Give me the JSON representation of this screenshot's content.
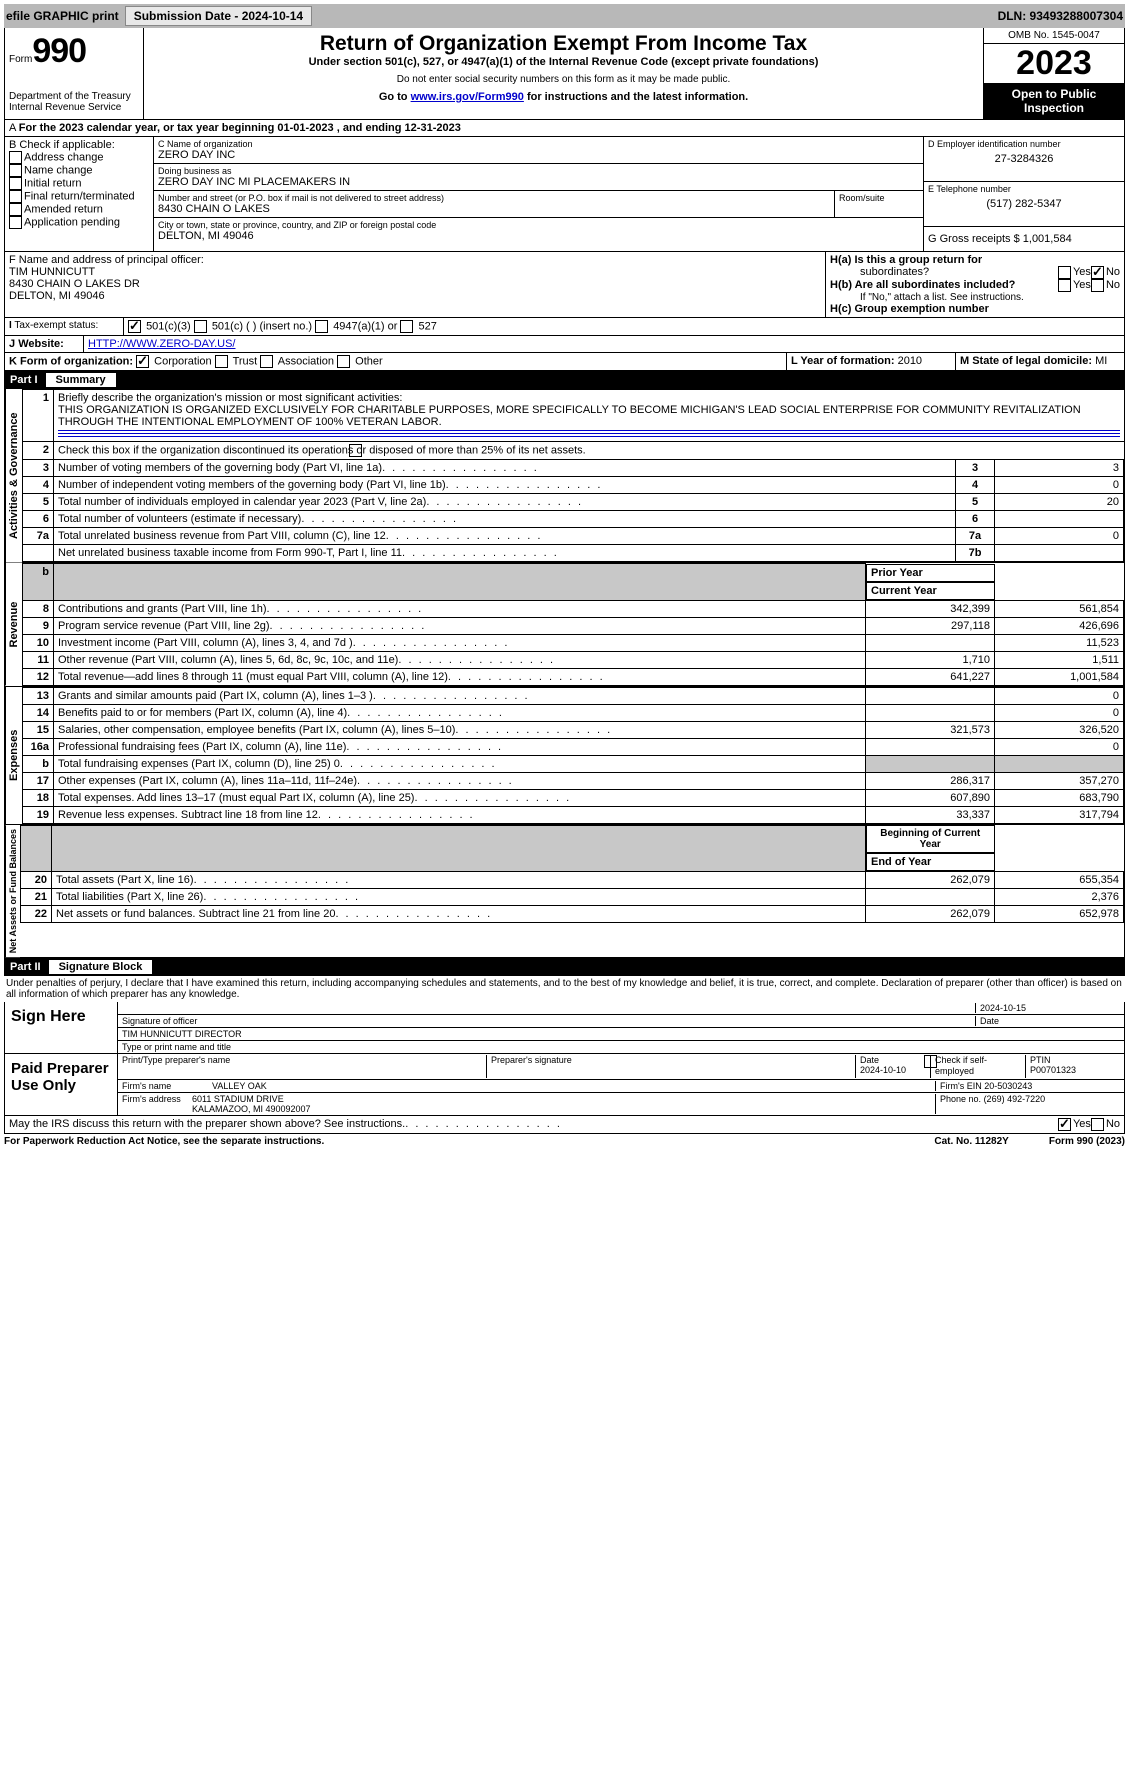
{
  "topbar": {
    "efile": "efile GRAPHIC print",
    "submission": "Submission Date - 2024-10-14",
    "dln": "DLN: 93493288007304"
  },
  "header": {
    "form_label": "Form",
    "form_no": "990",
    "omb": "OMB No. 1545-0047",
    "year": "2023",
    "title": "Return of Organization Exempt From Income Tax",
    "sub": "Under section 501(c), 527, or 4947(a)(1) of the Internal Revenue Code (except private foundations)",
    "sub2": "Do not enter social security numbers on this form as it may be made public.",
    "sub3": "Go to ",
    "sub3_link": "www.irs.gov/Form990",
    "sub3_suffix": " for instructions and the latest information.",
    "public": "Open to Public Inspection",
    "dept": "Department of the Treasury Internal Revenue Service"
  },
  "periodA": "For the 2023 calendar year, or tax year beginning 01-01-2023    , and ending 12-31-2023",
  "checkB": {
    "title": "B Check if applicable:",
    "items": [
      "Address change",
      "Name change",
      "Initial return",
      "Final return/terminated",
      "Amended return",
      "Application pending"
    ]
  },
  "org": {
    "name_lbl": "C Name of organization",
    "name": "ZERO DAY INC",
    "dba_lbl": "Doing business as",
    "dba": "ZERO DAY INC MI PLACEMAKERS IN",
    "street_lbl": "Number and street (or P.O. box if mail is not delivered to street address)",
    "street": "8430 CHAIN O LAKES",
    "room_lbl": "Room/suite",
    "city_lbl": "City or town, state or province, country, and ZIP or foreign postal code",
    "city": "DELTON, MI  49046"
  },
  "ein": {
    "lbl": "D Employer identification number",
    "val": "27-3284326"
  },
  "tel": {
    "lbl": "E Telephone number",
    "val": "(517) 282-5347"
  },
  "gross": {
    "lbl": "G Gross receipts $",
    "val": "1,001,584"
  },
  "officer": {
    "lbl": "F  Name and address of principal officer:",
    "name": "TIM HUNNICUTT",
    "addr1": "8430 CHAIN O LAKES DR",
    "addr2": "DELTON, MI  49046"
  },
  "groupH": {
    "a": "H(a)  Is this a group return for",
    "a2": "subordinates?",
    "b": "H(b)  Are all subordinates included?",
    "b2": "If \"No,\" attach a list. See instructions.",
    "c": "H(c)  Group exemption number",
    "yes": "Yes",
    "no": "No"
  },
  "tax": {
    "lbl": "Tax-exempt status:",
    "c3": "501(c)(3)",
    "c": "501(c) (  ) (insert no.)",
    "a1": "4947(a)(1) or",
    "s527": "527"
  },
  "website": {
    "lbl": "Website:",
    "val": "HTTP://WWW.ZERO-DAY.US/"
  },
  "formorg": {
    "lbl": "K Form of organization:",
    "corp": "Corporation",
    "trust": "Trust",
    "assoc": "Association",
    "other": "Other"
  },
  "year_formed": {
    "lbl": "L Year of formation:",
    "val": "2010"
  },
  "domicile": {
    "lbl": "M State of legal domicile:",
    "val": "MI"
  },
  "part1": {
    "label": "Part I",
    "title": "Summary"
  },
  "mission_lbl": "Briefly describe the organization's mission or most significant activities:",
  "mission": "THIS ORGANIZATION IS ORGANIZED EXCLUSIVELY FOR CHARITABLE PURPOSES, MORE SPECIFICALLY TO BECOME MICHIGAN'S LEAD SOCIAL ENTERPRISE FOR COMMUNITY REVITALIZATION THROUGH THE INTENTIONAL EMPLOYMENT OF 100% VETERAN LABOR.",
  "line2": "Check this box        if the organization discontinued its operations or disposed of more than 25% of its net assets.",
  "lines": {
    "l3": {
      "t": "Number of voting members of the governing body (Part VI, line 1a)",
      "n": "3",
      "v": "3"
    },
    "l4": {
      "t": "Number of independent voting members of the governing body (Part VI, line 1b)",
      "n": "4",
      "v": "0"
    },
    "l5": {
      "t": "Total number of individuals employed in calendar year 2023 (Part V, line 2a)",
      "n": "5",
      "v": "20"
    },
    "l6": {
      "t": "Total number of volunteers (estimate if necessary)",
      "n": "6",
      "v": ""
    },
    "l7a": {
      "t": "Total unrelated business revenue from Part VIII, column (C), line 12",
      "n": "7a",
      "v": "0"
    },
    "l7b": {
      "t": "Net unrelated business taxable income from Form 990-T, Part I, line 11",
      "n": "7b",
      "v": ""
    }
  },
  "rev_hdr": {
    "prior": "Prior Year",
    "curr": "Current Year"
  },
  "rev": [
    {
      "n": "8",
      "t": "Contributions and grants (Part VIII, line 1h)",
      "p": "342,399",
      "c": "561,854"
    },
    {
      "n": "9",
      "t": "Program service revenue (Part VIII, line 2g)",
      "p": "297,118",
      "c": "426,696"
    },
    {
      "n": "10",
      "t": "Investment income (Part VIII, column (A), lines 3, 4, and 7d )",
      "p": "",
      "c": "11,523"
    },
    {
      "n": "11",
      "t": "Other revenue (Part VIII, column (A), lines 5, 6d, 8c, 9c, 10c, and 11e)",
      "p": "1,710",
      "c": "1,511"
    },
    {
      "n": "12",
      "t": "Total revenue—add lines 8 through 11 (must equal Part VIII, column (A), line 12)",
      "p": "641,227",
      "c": "1,001,584"
    }
  ],
  "exp": [
    {
      "n": "13",
      "t": "Grants and similar amounts paid (Part IX, column (A), lines 1–3 )",
      "p": "",
      "c": "0"
    },
    {
      "n": "14",
      "t": "Benefits paid to or for members (Part IX, column (A), line 4)",
      "p": "",
      "c": "0"
    },
    {
      "n": "15",
      "t": "Salaries, other compensation, employee benefits (Part IX, column (A), lines 5–10)",
      "p": "321,573",
      "c": "326,520"
    },
    {
      "n": "16a",
      "t": "Professional fundraising fees (Part IX, column (A), line 11e)",
      "p": "",
      "c": "0"
    },
    {
      "n": "b",
      "t": "Total fundraising expenses (Part IX, column (D), line 25) 0",
      "p": "grey",
      "c": "grey"
    },
    {
      "n": "17",
      "t": "Other expenses (Part IX, column (A), lines 11a–11d, 11f–24e)",
      "p": "286,317",
      "c": "357,270"
    },
    {
      "n": "18",
      "t": "Total expenses. Add lines 13–17 (must equal Part IX, column (A), line 25)",
      "p": "607,890",
      "c": "683,790"
    },
    {
      "n": "19",
      "t": "Revenue less expenses. Subtract line 18 from line 12",
      "p": "33,337",
      "c": "317,794"
    }
  ],
  "net_hdr": {
    "beg": "Beginning of Current Year",
    "end": "End of Year"
  },
  "net": [
    {
      "n": "20",
      "t": "Total assets (Part X, line 16)",
      "p": "262,079",
      "c": "655,354"
    },
    {
      "n": "21",
      "t": "Total liabilities (Part X, line 26)",
      "p": "",
      "c": "2,376"
    },
    {
      "n": "22",
      "t": "Net assets or fund balances. Subtract line 21 from line 20",
      "p": "262,079",
      "c": "652,978"
    }
  ],
  "sides": {
    "ag": "Activities & Governance",
    "rev": "Revenue",
    "exp": "Expenses",
    "net": "Net Assets or Fund Balances"
  },
  "part2": {
    "label": "Part II",
    "title": "Signature Block"
  },
  "perjury": "Under penalties of perjury, I declare that I have examined this return, including accompanying schedules and statements, and to the best of my knowledge and belief, it is true, correct, and complete. Declaration of preparer (other than officer) is based on all information of which preparer has any knowledge.",
  "sign": {
    "here": "Sign Here",
    "sig_date": "2024-10-15",
    "sig_lbl": "Signature of officer",
    "date_lbl": "Date",
    "officer": "TIM HUNNICUTT DIRECTOR",
    "type_lbl": "Type or print name and title"
  },
  "paid": {
    "title": "Paid Preparer Use Only",
    "name_lbl": "Print/Type preparer's name",
    "sig_lbl": "Preparer's signature",
    "date_lbl": "Date",
    "date": "2024-10-10",
    "check_lbl": "Check         if self-employed",
    "ptin_lbl": "PTIN",
    "ptin": "P00701323",
    "firm_lbl": "Firm's name",
    "firm": "VALLEY OAK",
    "ein_lbl": "Firm's EIN",
    "ein": "20-5030243",
    "addr_lbl": "Firm's address",
    "addr1": "6011 STADIUM DRIVE",
    "addr2": "KALAMAZOO, MI  490092007",
    "phone_lbl": "Phone no.",
    "phone": "(269) 492-7220"
  },
  "discuss": "May the IRS discuss this return with the preparer shown above? See instructions.",
  "footer": {
    "l": "For Paperwork Reduction Act Notice, see the separate instructions.",
    "m": "Cat. No. 11282Y",
    "r": "Form 990 (2023)"
  }
}
